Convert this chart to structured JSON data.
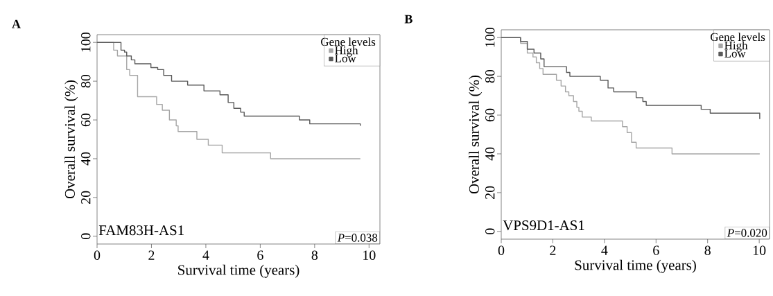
{
  "chart_data": [
    {
      "type": "step",
      "title": "A",
      "xlabel": "Survival time (years)",
      "ylabel": "Overall survival (%)",
      "legend_title": "Gene levels",
      "legend": "top right",
      "xlim": [
        0,
        10.4
      ],
      "ylim": [
        -4,
        104
      ],
      "xticks": [
        0,
        2,
        4,
        6,
        8,
        10
      ],
      "yticks": [
        0,
        20,
        40,
        60,
        80,
        100
      ],
      "annotations": [
        "FAM83H-AS1",
        "*P*=0.038"
      ],
      "series": [
        {
          "name": "High",
          "color": "#a6a6a6",
          "x": [
            0,
            0.61,
            0.75,
            1.09,
            1.2,
            1.49,
            2.19,
            2.4,
            2.66,
            2.91,
            2.98,
            3.67,
            4.09,
            4.6,
            6.38,
            9.68
          ],
          "values": [
            100,
            96,
            93,
            86,
            83,
            72,
            68,
            65,
            60,
            57,
            54,
            50,
            47,
            43,
            40,
            40
          ]
        },
        {
          "name": "Low",
          "color": "#5a5a5a",
          "x": [
            0,
            0.88,
            1.01,
            1.09,
            1.26,
            1.39,
            1.98,
            2.23,
            2.45,
            2.74,
            3.33,
            3.93,
            4.52,
            4.82,
            5.03,
            5.28,
            5.41,
            7.44,
            7.82,
            9.68
          ],
          "values": [
            100,
            96,
            95,
            93,
            91,
            89,
            87,
            86,
            83,
            80,
            78,
            75,
            73,
            69,
            66,
            64,
            62,
            60,
            58,
            57
          ]
        }
      ]
    },
    {
      "type": "step",
      "title": "B",
      "xlabel": "Survival time (years)",
      "ylabel": "Overall survival (%)",
      "legend_title": "Gene levels",
      "legend": "top right",
      "xlim": [
        0,
        10.4
      ],
      "ylim": [
        -4,
        104
      ],
      "xticks": [
        0,
        2,
        4,
        6,
        8,
        10
      ],
      "yticks": [
        0,
        20,
        40,
        60,
        80,
        100
      ],
      "annotations": [
        "VPS9D1-AS1",
        "*P*=0.020"
      ],
      "series": [
        {
          "name": "High",
          "color": "#a6a6a6",
          "x": [
            0,
            0.75,
            1.01,
            1.23,
            1.36,
            1.49,
            1.62,
            2.14,
            2.32,
            2.49,
            2.62,
            2.8,
            2.93,
            3.01,
            3.14,
            3.49,
            4.7,
            4.88,
            5.05,
            5.23,
            6.62,
            10.02
          ],
          "values": [
            100,
            97,
            92,
            90,
            87,
            84,
            81,
            78,
            75,
            72,
            70,
            67,
            64,
            62,
            59,
            57,
            54,
            51,
            46,
            43,
            40,
            40
          ]
        },
        {
          "name": "Low",
          "color": "#5a5a5a",
          "x": [
            0,
            0.75,
            1.01,
            1.27,
            1.53,
            1.66,
            2.53,
            2.66,
            3.84,
            4.14,
            4.36,
            5.23,
            5.49,
            5.62,
            7.75,
            8.1,
            10.02
          ],
          "values": [
            100,
            98,
            94,
            92,
            89,
            85,
            82,
            80,
            78,
            74,
            72,
            69,
            67,
            65,
            63,
            61,
            58
          ]
        }
      ]
    }
  ]
}
